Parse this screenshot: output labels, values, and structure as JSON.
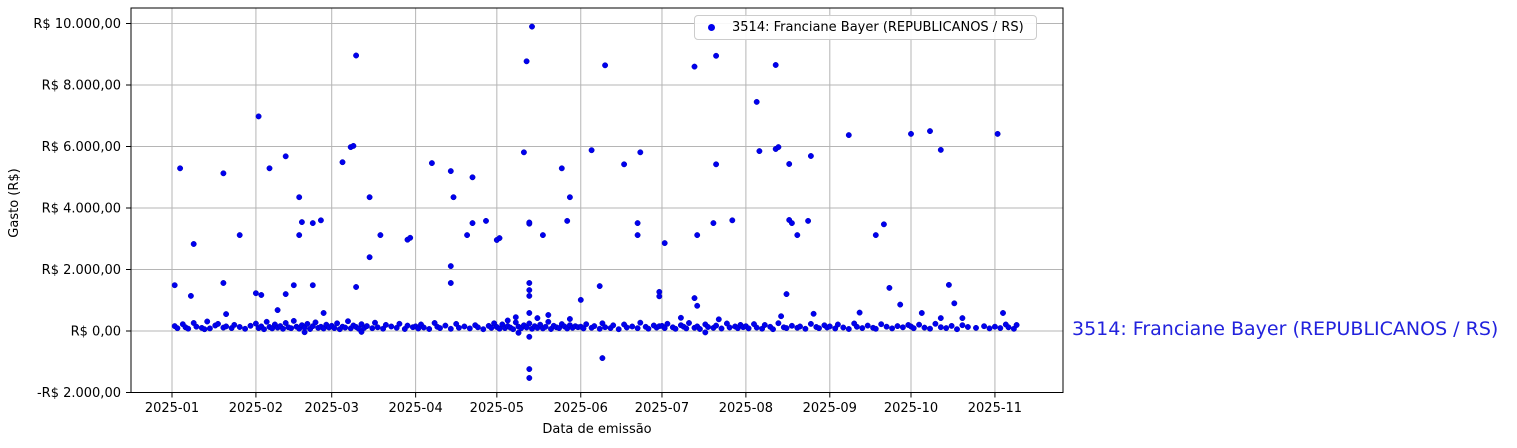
{
  "page": {
    "background": "#ffffff"
  },
  "side_label": {
    "text": "3514: Franciane Bayer (REPUBLICANOS / RS)",
    "color": "#2222dd"
  },
  "chart_data": {
    "type": "scatter",
    "title": "",
    "xlabel": "Data de emissão",
    "ylabel": "Gasto (R$)",
    "grid": true,
    "grid_color": "#b5b5b5",
    "marker_color": "#0000ee",
    "legend": {
      "label": "3514: Franciane Bayer (REPUBLICANOS / RS)",
      "position": "upper right"
    },
    "xlim": [
      "2024-12-17",
      "2025-11-26"
    ],
    "ylim": [
      -2000,
      10500
    ],
    "x_ticks": [
      {
        "date": "2025-01-01",
        "label": "2025-01"
      },
      {
        "date": "2025-02-01",
        "label": "2025-02"
      },
      {
        "date": "2025-03-01",
        "label": "2025-03"
      },
      {
        "date": "2025-04-01",
        "label": "2025-04"
      },
      {
        "date": "2025-05-01",
        "label": "2025-05"
      },
      {
        "date": "2025-06-01",
        "label": "2025-06"
      },
      {
        "date": "2025-07-01",
        "label": "2025-07"
      },
      {
        "date": "2025-08-01",
        "label": "2025-08"
      },
      {
        "date": "2025-09-01",
        "label": "2025-09"
      },
      {
        "date": "2025-10-01",
        "label": "2025-10"
      },
      {
        "date": "2025-11-01",
        "label": "2025-11"
      }
    ],
    "y_ticks": [
      {
        "value": 10000,
        "label": "R$ 10.000,00"
      },
      {
        "value": 8000,
        "label": "R$ 8.000,00"
      },
      {
        "value": 6000,
        "label": "R$ 6.000,00"
      },
      {
        "value": 4000,
        "label": "R$ 4.000,00"
      },
      {
        "value": 2000,
        "label": "R$ 2.000,00"
      },
      {
        "value": 0,
        "label": "R$ 0,00"
      },
      {
        "value": -2000,
        "label": "-R$ 2.000,00"
      }
    ],
    "points": [
      [
        "2025-01-02",
        1490
      ],
      [
        "2025-01-04",
        5290
      ],
      [
        "2025-01-08",
        1140
      ],
      [
        "2025-01-09",
        2830
      ],
      [
        "2025-01-20",
        5130
      ],
      [
        "2025-01-20",
        1560
      ],
      [
        "2025-01-21",
        550
      ],
      [
        "2025-01-26",
        3120
      ],
      [
        "2025-01-02",
        160
      ],
      [
        "2025-01-03",
        90
      ],
      [
        "2025-01-05",
        220
      ],
      [
        "2025-01-06",
        120
      ],
      [
        "2025-01-07",
        75
      ],
      [
        "2025-01-09",
        260
      ],
      [
        "2025-01-10",
        140
      ],
      [
        "2025-01-12",
        100
      ],
      [
        "2025-01-13",
        60
      ],
      [
        "2025-01-14",
        310
      ],
      [
        "2025-01-15",
        85
      ],
      [
        "2025-01-17",
        180
      ],
      [
        "2025-01-18",
        230
      ],
      [
        "2025-01-20",
        110
      ],
      [
        "2025-01-21",
        150
      ],
      [
        "2025-01-23",
        95
      ],
      [
        "2025-01-24",
        200
      ],
      [
        "2025-01-26",
        130
      ],
      [
        "2025-01-28",
        70
      ],
      [
        "2025-01-30",
        170
      ],
      [
        "2025-02-01",
        1230
      ],
      [
        "2025-02-02",
        6980
      ],
      [
        "2025-02-03",
        1170
      ],
      [
        "2025-02-06",
        5290
      ],
      [
        "2025-02-09",
        680
      ],
      [
        "2025-02-12",
        5680
      ],
      [
        "2025-02-12",
        1200
      ],
      [
        "2025-02-15",
        1490
      ],
      [
        "2025-02-17",
        4350
      ],
      [
        "2025-02-17",
        3120
      ],
      [
        "2025-02-18",
        3540
      ],
      [
        "2025-02-22",
        3510
      ],
      [
        "2025-02-22",
        1490
      ],
      [
        "2025-02-25",
        3600
      ],
      [
        "2025-02-26",
        585
      ],
      [
        "2025-02-01",
        240
      ],
      [
        "2025-02-02",
        95
      ],
      [
        "2025-02-03",
        150
      ],
      [
        "2025-02-04",
        60
      ],
      [
        "2025-02-05",
        300
      ],
      [
        "2025-02-06",
        130
      ],
      [
        "2025-02-07",
        85
      ],
      [
        "2025-02-08",
        210
      ],
      [
        "2025-02-09",
        110
      ],
      [
        "2025-02-10",
        160
      ],
      [
        "2025-02-11",
        70
      ],
      [
        "2025-02-12",
        260
      ],
      [
        "2025-02-13",
        120
      ],
      [
        "2025-02-14",
        90
      ],
      [
        "2025-02-15",
        330
      ],
      [
        "2025-02-16",
        140
      ],
      [
        "2025-02-17",
        75
      ],
      [
        "2025-02-18",
        190
      ],
      [
        "2025-02-19",
        -40
      ],
      [
        "2025-02-19",
        105
      ],
      [
        "2025-02-20",
        230
      ],
      [
        "2025-02-21",
        65
      ],
      [
        "2025-02-22",
        155
      ],
      [
        "2025-02-23",
        280
      ],
      [
        "2025-02-24",
        100
      ],
      [
        "2025-02-25",
        135
      ],
      [
        "2025-02-26",
        80
      ],
      [
        "2025-02-27",
        205
      ],
      [
        "2025-02-28",
        115
      ],
      [
        "2025-03-05",
        5490
      ],
      [
        "2025-03-08",
        5980
      ],
      [
        "2025-03-09",
        6020
      ],
      [
        "2025-03-10",
        8960
      ],
      [
        "2025-03-10",
        1430
      ],
      [
        "2025-03-15",
        4350
      ],
      [
        "2025-03-15",
        2400
      ],
      [
        "2025-03-19",
        3120
      ],
      [
        "2025-03-29",
        2970
      ],
      [
        "2025-03-30",
        3030
      ],
      [
        "2025-03-01",
        170
      ],
      [
        "2025-03-02",
        95
      ],
      [
        "2025-03-03",
        250
      ],
      [
        "2025-03-04",
        60
      ],
      [
        "2025-03-05",
        140
      ],
      [
        "2025-03-06",
        110
      ],
      [
        "2025-03-07",
        320
      ],
      [
        "2025-03-08",
        85
      ],
      [
        "2025-03-09",
        180
      ],
      [
        "2025-03-10",
        130
      ],
      [
        "2025-03-11",
        70
      ],
      [
        "2025-03-12",
        -30
      ],
      [
        "2025-03-12",
        220
      ],
      [
        "2025-03-13",
        100
      ],
      [
        "2025-03-14",
        160
      ],
      [
        "2025-03-16",
        90
      ],
      [
        "2025-03-17",
        270
      ],
      [
        "2025-03-18",
        120
      ],
      [
        "2025-03-20",
        75
      ],
      [
        "2025-03-21",
        200
      ],
      [
        "2025-03-23",
        145
      ],
      [
        "2025-03-25",
        105
      ],
      [
        "2025-03-26",
        235
      ],
      [
        "2025-03-28",
        65
      ],
      [
        "2025-03-29",
        175
      ],
      [
        "2025-03-31",
        125
      ],
      [
        "2025-04-07",
        5460
      ],
      [
        "2025-04-14",
        5200
      ],
      [
        "2025-04-14",
        2110
      ],
      [
        "2025-04-14",
        1560
      ],
      [
        "2025-04-15",
        4350
      ],
      [
        "2025-04-20",
        3120
      ],
      [
        "2025-04-22",
        5000
      ],
      [
        "2025-04-22",
        3510
      ],
      [
        "2025-04-27",
        3580
      ],
      [
        "2025-04-01",
        150
      ],
      [
        "2025-04-02",
        80
      ],
      [
        "2025-04-03",
        210
      ],
      [
        "2025-04-04",
        115
      ],
      [
        "2025-04-06",
        65
      ],
      [
        "2025-04-08",
        260
      ],
      [
        "2025-04-09",
        135
      ],
      [
        "2025-04-10",
        95
      ],
      [
        "2025-04-12",
        175
      ],
      [
        "2025-04-14",
        70
      ],
      [
        "2025-04-16",
        230
      ],
      [
        "2025-04-17",
        105
      ],
      [
        "2025-04-19",
        145
      ],
      [
        "2025-04-21",
        85
      ],
      [
        "2025-04-23",
        190
      ],
      [
        "2025-04-24",
        120
      ],
      [
        "2025-04-26",
        60
      ],
      [
        "2025-04-28",
        165
      ],
      [
        "2025-04-29",
        100
      ],
      [
        "2025-04-30",
        250
      ],
      [
        "2025-05-01",
        2960
      ],
      [
        "2025-05-02",
        3020
      ],
      [
        "2025-05-11",
        5810
      ],
      [
        "2025-05-12",
        8770
      ],
      [
        "2025-05-14",
        9900
      ],
      [
        "2025-05-13",
        3490
      ],
      [
        "2025-05-13",
        3530
      ],
      [
        "2025-05-13",
        1560
      ],
      [
        "2025-05-13",
        1330
      ],
      [
        "2025-05-13",
        1140
      ],
      [
        "2025-05-13",
        585
      ],
      [
        "2025-05-13",
        -190
      ],
      [
        "2025-05-13",
        -1240
      ],
      [
        "2025-05-13",
        -1530
      ],
      [
        "2025-05-18",
        3120
      ],
      [
        "2025-05-25",
        5290
      ],
      [
        "2025-05-27",
        3580
      ],
      [
        "2025-05-28",
        4350
      ],
      [
        "2025-05-01",
        130
      ],
      [
        "2025-05-02",
        75
      ],
      [
        "2025-05-03",
        215
      ],
      [
        "2025-05-04",
        95
      ],
      [
        "2025-05-05",
        340
      ],
      [
        "2025-05-05",
        160
      ],
      [
        "2025-05-06",
        110
      ],
      [
        "2025-05-07",
        60
      ],
      [
        "2025-05-08",
        450
      ],
      [
        "2025-05-08",
        280
      ],
      [
        "2025-05-09",
        -60
      ],
      [
        "2025-05-09",
        140
      ],
      [
        "2025-05-10",
        90
      ],
      [
        "2025-05-11",
        185
      ],
      [
        "2025-05-12",
        115
      ],
      [
        "2025-05-13",
        245
      ],
      [
        "2025-05-14",
        70
      ],
      [
        "2025-05-15",
        155
      ],
      [
        "2025-05-16",
        420
      ],
      [
        "2025-05-16",
        100
      ],
      [
        "2025-05-17",
        205
      ],
      [
        "2025-05-18",
        85
      ],
      [
        "2025-05-19",
        135
      ],
      [
        "2025-05-20",
        520
      ],
      [
        "2025-05-20",
        300
      ],
      [
        "2025-05-21",
        65
      ],
      [
        "2025-05-22",
        170
      ],
      [
        "2025-05-23",
        120
      ],
      [
        "2025-05-24",
        95
      ],
      [
        "2025-05-25",
        225
      ],
      [
        "2025-05-26",
        145
      ],
      [
        "2025-05-27",
        80
      ],
      [
        "2025-05-28",
        390
      ],
      [
        "2025-05-28",
        190
      ],
      [
        "2025-05-29",
        105
      ],
      [
        "2025-05-30",
        155
      ],
      [
        "2025-05-31",
        125
      ],
      [
        "2025-06-01",
        1010
      ],
      [
        "2025-06-05",
        5880
      ],
      [
        "2025-06-08",
        1460
      ],
      [
        "2025-06-09",
        -880
      ],
      [
        "2025-06-10",
        8640
      ],
      [
        "2025-06-17",
        5420
      ],
      [
        "2025-06-22",
        3510
      ],
      [
        "2025-06-22",
        3120
      ],
      [
        "2025-06-23",
        5810
      ],
      [
        "2025-06-30",
        1270
      ],
      [
        "2025-06-30",
        1130
      ],
      [
        "2025-06-01",
        140
      ],
      [
        "2025-06-02",
        85
      ],
      [
        "2025-06-03",
        220
      ],
      [
        "2025-06-05",
        105
      ],
      [
        "2025-06-06",
        160
      ],
      [
        "2025-06-08",
        70
      ],
      [
        "2025-06-09",
        250
      ],
      [
        "2025-06-10",
        125
      ],
      [
        "2025-06-12",
        95
      ],
      [
        "2025-06-13",
        185
      ],
      [
        "2025-06-15",
        60
      ],
      [
        "2025-06-17",
        210
      ],
      [
        "2025-06-18",
        115
      ],
      [
        "2025-06-20",
        145
      ],
      [
        "2025-06-22",
        90
      ],
      [
        "2025-06-23",
        270
      ],
      [
        "2025-06-25",
        135
      ],
      [
        "2025-06-26",
        75
      ],
      [
        "2025-06-28",
        180
      ],
      [
        "2025-06-29",
        110
      ],
      [
        "2025-06-30",
        155
      ],
      [
        "2025-07-02",
        2860
      ],
      [
        "2025-07-13",
        8600
      ],
      [
        "2025-07-13",
        1070
      ],
      [
        "2025-07-14",
        3120
      ],
      [
        "2025-07-14",
        820
      ],
      [
        "2025-07-20",
        3510
      ],
      [
        "2025-07-21",
        8950
      ],
      [
        "2025-07-21",
        5420
      ],
      [
        "2025-07-27",
        3600
      ],
      [
        "2025-07-01",
        165
      ],
      [
        "2025-07-02",
        95
      ],
      [
        "2025-07-03",
        235
      ],
      [
        "2025-07-05",
        120
      ],
      [
        "2025-07-06",
        70
      ],
      [
        "2025-07-08",
        430
      ],
      [
        "2025-07-08",
        190
      ],
      [
        "2025-07-09",
        140
      ],
      [
        "2025-07-10",
        85
      ],
      [
        "2025-07-11",
        260
      ],
      [
        "2025-07-13",
        105
      ],
      [
        "2025-07-14",
        150
      ],
      [
        "2025-07-15",
        65
      ],
      [
        "2025-07-17",
        -45
      ],
      [
        "2025-07-17",
        215
      ],
      [
        "2025-07-18",
        130
      ],
      [
        "2025-07-20",
        100
      ],
      [
        "2025-07-21",
        175
      ],
      [
        "2025-07-22",
        380
      ],
      [
        "2025-07-23",
        80
      ],
      [
        "2025-07-25",
        245
      ],
      [
        "2025-07-26",
        115
      ],
      [
        "2025-07-28",
        145
      ],
      [
        "2025-07-29",
        90
      ],
      [
        "2025-07-30",
        200
      ],
      [
        "2025-07-31",
        125
      ],
      [
        "2025-08-05",
        7450
      ],
      [
        "2025-08-06",
        5850
      ],
      [
        "2025-08-12",
        8650
      ],
      [
        "2025-08-12",
        5920
      ],
      [
        "2025-08-13",
        5980
      ],
      [
        "2025-08-16",
        1200
      ],
      [
        "2025-08-17",
        5430
      ],
      [
        "2025-08-17",
        3610
      ],
      [
        "2025-08-18",
        3510
      ],
      [
        "2025-08-20",
        3120
      ],
      [
        "2025-08-24",
        3580
      ],
      [
        "2025-08-25",
        5690
      ],
      [
        "2025-08-01",
        155
      ],
      [
        "2025-08-02",
        85
      ],
      [
        "2025-08-04",
        225
      ],
      [
        "2025-08-05",
        110
      ],
      [
        "2025-08-07",
        75
      ],
      [
        "2025-08-08",
        195
      ],
      [
        "2025-08-10",
        135
      ],
      [
        "2025-08-11",
        60
      ],
      [
        "2025-08-13",
        255
      ],
      [
        "2025-08-14",
        480
      ],
      [
        "2025-08-15",
        120
      ],
      [
        "2025-08-16",
        95
      ],
      [
        "2025-08-18",
        170
      ],
      [
        "2025-08-20",
        105
      ],
      [
        "2025-08-21",
        145
      ],
      [
        "2025-08-23",
        70
      ],
      [
        "2025-08-25",
        230
      ],
      [
        "2025-08-26",
        560
      ],
      [
        "2025-08-27",
        130
      ],
      [
        "2025-08-28",
        90
      ],
      [
        "2025-08-30",
        185
      ],
      [
        "2025-08-31",
        115
      ],
      [
        "2025-09-08",
        6370
      ],
      [
        "2025-09-18",
        3120
      ],
      [
        "2025-09-21",
        3470
      ],
      [
        "2025-09-23",
        1400
      ],
      [
        "2025-09-01",
        150
      ],
      [
        "2025-09-03",
        80
      ],
      [
        "2025-09-04",
        210
      ],
      [
        "2025-09-06",
        115
      ],
      [
        "2025-09-08",
        65
      ],
      [
        "2025-09-10",
        245
      ],
      [
        "2025-09-11",
        135
      ],
      [
        "2025-09-12",
        600
      ],
      [
        "2025-09-13",
        95
      ],
      [
        "2025-09-15",
        175
      ],
      [
        "2025-09-17",
        105
      ],
      [
        "2025-09-18",
        70
      ],
      [
        "2025-09-20",
        220
      ],
      [
        "2025-09-22",
        140
      ],
      [
        "2025-09-24",
        85
      ],
      [
        "2025-09-26",
        160
      ],
      [
        "2025-09-27",
        860
      ],
      [
        "2025-09-28",
        120
      ],
      [
        "2025-09-30",
        195
      ],
      [
        "2025-10-01",
        6410
      ],
      [
        "2025-10-08",
        6500
      ],
      [
        "2025-10-12",
        5890
      ],
      [
        "2025-10-15",
        1500
      ],
      [
        "2025-10-01",
        145
      ],
      [
        "2025-10-02",
        90
      ],
      [
        "2025-10-04",
        205
      ],
      [
        "2025-10-05",
        585
      ],
      [
        "2025-10-06",
        110
      ],
      [
        "2025-10-08",
        75
      ],
      [
        "2025-10-10",
        235
      ],
      [
        "2025-10-12",
        420
      ],
      [
        "2025-10-12",
        125
      ],
      [
        "2025-10-14",
        95
      ],
      [
        "2025-10-16",
        165
      ],
      [
        "2025-10-17",
        900
      ],
      [
        "2025-10-18",
        60
      ],
      [
        "2025-10-20",
        420
      ],
      [
        "2025-10-20",
        190
      ],
      [
        "2025-10-22",
        130
      ],
      [
        "2025-10-25",
        100
      ],
      [
        "2025-10-28",
        155
      ],
      [
        "2025-10-30",
        85
      ],
      [
        "2025-11-02",
        6410
      ],
      [
        "2025-11-04",
        585
      ],
      [
        "2025-11-01",
        140
      ],
      [
        "2025-11-03",
        95
      ],
      [
        "2025-11-05",
        210
      ],
      [
        "2025-11-06",
        120
      ],
      [
        "2025-11-08",
        70
      ],
      [
        "2025-11-09",
        195
      ]
    ]
  }
}
